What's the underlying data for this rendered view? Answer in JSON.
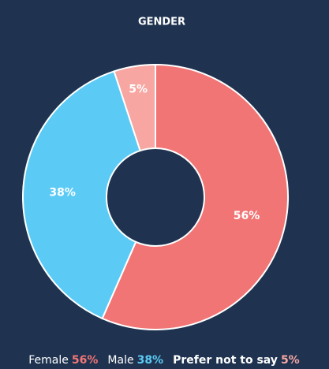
{
  "chart_data": {
    "type": "pie",
    "title": "GENDER",
    "categories": [
      "Female",
      "Male",
      "Prefer not to say"
    ],
    "values": [
      56,
      38,
      5
    ],
    "value_labels": [
      "56%",
      "38%",
      "5%"
    ],
    "colors": [
      "#f27575",
      "#5bcbf5",
      "#f7a6a2"
    ],
    "legend": "bottom"
  }
}
